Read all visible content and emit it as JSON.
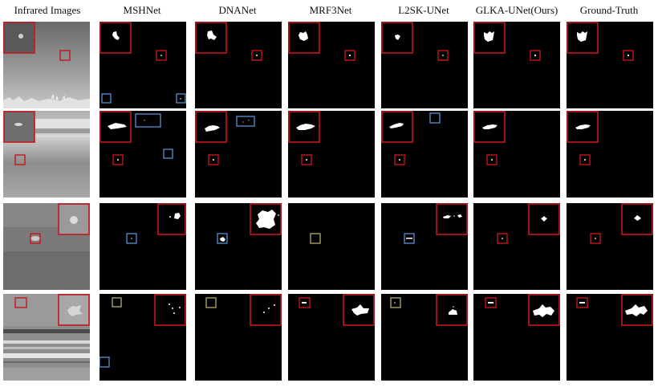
{
  "figure": {
    "columns": [
      "Infrared Images",
      "MSHNet",
      "DNANet",
      "MRF3Net",
      "L2SK-UNet",
      "GLKA-UNet(Ours)",
      "Ground-Truth"
    ],
    "rows": 4,
    "box_colors": {
      "red": "#c4161c",
      "blue": "#5b8fd4",
      "yellow": "#b9ad72"
    }
  }
}
